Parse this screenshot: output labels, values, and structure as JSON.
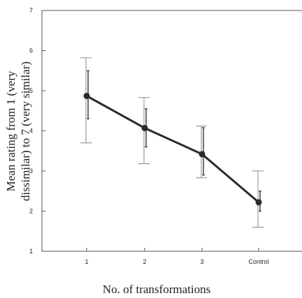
{
  "chart_data": {
    "type": "line",
    "title": "",
    "xlabel": "No. of transformations",
    "ylabel_line1": "Mean rating from 1 (very",
    "ylabel_line2": "dissimilar) to 7 (very similar)",
    "categories": [
      "1",
      "2",
      "3",
      "Control"
    ],
    "ylim": [
      1,
      7
    ],
    "yticks": [
      1,
      2,
      3,
      4,
      5,
      6,
      7
    ],
    "grid": false,
    "series": [
      {
        "values": [
          4.87,
          4.07,
          3.42,
          2.22
        ],
        "error_outer_high": [
          5.82,
          4.83,
          4.12,
          3.0
        ],
        "error_outer_low": [
          3.7,
          3.18,
          2.83,
          1.6
        ],
        "error_inner_high": [
          5.5,
          4.55,
          4.08,
          2.5
        ],
        "error_inner_low": [
          4.3,
          3.6,
          2.9,
          2.0
        ]
      }
    ],
    "colors": {
      "line": "#2a2a2a",
      "axis": "#555555"
    }
  }
}
